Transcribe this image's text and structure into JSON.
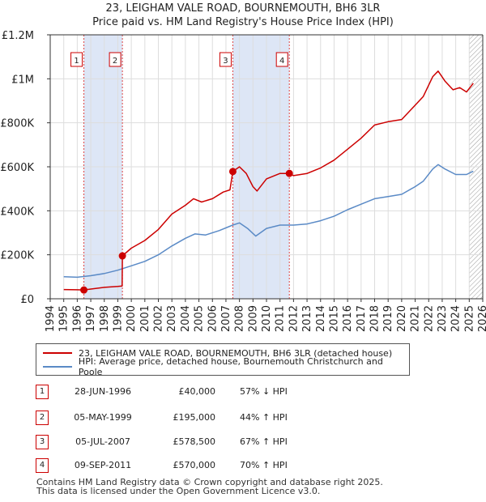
{
  "title": {
    "line1": "23, LEIGHAM VALE ROAD, BOURNEMOUTH, BH6 3LR",
    "line2": "Price paid vs. HM Land Registry's House Price Index (HPI)"
  },
  "chart_data": {
    "type": "line",
    "title": "23, LEIGHAM VALE ROAD, BOURNEMOUTH, BH6 3LR — Price paid vs. HM Land Registry's House Price Index (HPI)",
    "xlim": [
      1994,
      2026
    ],
    "ylim": [
      0,
      1200000
    ],
    "x_ticks": [
      "1994",
      "1995",
      "1996",
      "1997",
      "1998",
      "1999",
      "2000",
      "2001",
      "2002",
      "2003",
      "2004",
      "2005",
      "2006",
      "2007",
      "2008",
      "2009",
      "2010",
      "2011",
      "2012",
      "2013",
      "2014",
      "2015",
      "2016",
      "2017",
      "2018",
      "2019",
      "2020",
      "2021",
      "2022",
      "2023",
      "2024",
      "2025",
      "2026"
    ],
    "y_ticks": [
      {
        "value": 0,
        "label": "£0"
      },
      {
        "value": 200000,
        "label": "£200K"
      },
      {
        "value": 400000,
        "label": "£400K"
      },
      {
        "value": 600000,
        "label": "£600K"
      },
      {
        "value": 800000,
        "label": "£800K"
      },
      {
        "value": 1000000,
        "label": "£1M"
      },
      {
        "value": 1200000,
        "label": "£1.2M"
      }
    ],
    "shaded_periods": [
      [
        1996.49,
        1999.34
      ],
      [
        2007.51,
        2011.69
      ]
    ],
    "hatched_after": 2025.0,
    "series": [
      {
        "name": "23, LEIGHAM VALE ROAD, BOURNEMOUTH, BH6 3LR (detached house)",
        "color": "#cc0000",
        "points": [
          [
            1995.0,
            42000
          ],
          [
            1996.0,
            41000
          ],
          [
            1996.49,
            40000
          ],
          [
            1997.0,
            44000
          ],
          [
            1998.0,
            52000
          ],
          [
            1999.0,
            56000
          ],
          [
            1999.32,
            58000
          ],
          [
            1999.34,
            195000
          ],
          [
            2000.0,
            230000
          ],
          [
            2001.0,
            265000
          ],
          [
            2002.0,
            315000
          ],
          [
            2003.0,
            385000
          ],
          [
            2004.0,
            425000
          ],
          [
            2004.6,
            455000
          ],
          [
            2005.2,
            440000
          ],
          [
            2006.0,
            455000
          ],
          [
            2006.8,
            485000
          ],
          [
            2007.3,
            495000
          ],
          [
            2007.51,
            578500
          ],
          [
            2008.0,
            600000
          ],
          [
            2008.5,
            570000
          ],
          [
            2009.0,
            510000
          ],
          [
            2009.3,
            490000
          ],
          [
            2010.0,
            545000
          ],
          [
            2011.0,
            570000
          ],
          [
            2011.69,
            570000
          ],
          [
            2012.0,
            560000
          ],
          [
            2013.0,
            570000
          ],
          [
            2014.0,
            595000
          ],
          [
            2015.0,
            630000
          ],
          [
            2016.0,
            680000
          ],
          [
            2017.0,
            730000
          ],
          [
            2018.0,
            790000
          ],
          [
            2019.0,
            805000
          ],
          [
            2020.0,
            815000
          ],
          [
            2021.0,
            880000
          ],
          [
            2021.6,
            920000
          ],
          [
            2022.3,
            1010000
          ],
          [
            2022.7,
            1035000
          ],
          [
            2023.2,
            990000
          ],
          [
            2023.8,
            950000
          ],
          [
            2024.3,
            960000
          ],
          [
            2024.8,
            940000
          ],
          [
            2025.3,
            980000
          ]
        ]
      },
      {
        "name": "HPI: Average price, detached house, Bournemouth Christchurch and Poole",
        "color": "#5a8ac6",
        "points": [
          [
            1995.0,
            100000
          ],
          [
            1996.0,
            98000
          ],
          [
            1997.0,
            105000
          ],
          [
            1998.0,
            115000
          ],
          [
            1999.0,
            130000
          ],
          [
            2000.0,
            150000
          ],
          [
            2001.0,
            170000
          ],
          [
            2002.0,
            200000
          ],
          [
            2003.0,
            240000
          ],
          [
            2004.0,
            275000
          ],
          [
            2004.7,
            295000
          ],
          [
            2005.5,
            290000
          ],
          [
            2006.5,
            310000
          ],
          [
            2007.5,
            335000
          ],
          [
            2008.0,
            345000
          ],
          [
            2008.6,
            320000
          ],
          [
            2009.2,
            285000
          ],
          [
            2010.0,
            320000
          ],
          [
            2011.0,
            335000
          ],
          [
            2012.0,
            335000
          ],
          [
            2013.0,
            340000
          ],
          [
            2014.0,
            355000
          ],
          [
            2015.0,
            375000
          ],
          [
            2016.0,
            405000
          ],
          [
            2017.0,
            430000
          ],
          [
            2018.0,
            455000
          ],
          [
            2019.0,
            465000
          ],
          [
            2020.0,
            475000
          ],
          [
            2021.0,
            510000
          ],
          [
            2021.6,
            535000
          ],
          [
            2022.3,
            590000
          ],
          [
            2022.7,
            610000
          ],
          [
            2023.2,
            590000
          ],
          [
            2024.0,
            565000
          ],
          [
            2024.8,
            565000
          ],
          [
            2025.3,
            580000
          ]
        ]
      }
    ],
    "sale_markers": [
      {
        "label": "1",
        "x": 1996.49,
        "y": 40000
      },
      {
        "label": "2",
        "x": 1999.34,
        "y": 195000
      },
      {
        "label": "3",
        "x": 2007.51,
        "y": 578500
      },
      {
        "label": "4",
        "x": 2011.69,
        "y": 570000
      }
    ]
  },
  "legend": {
    "property_label": "23, LEIGHAM VALE ROAD, BOURNEMOUTH, BH6 3LR (detached house)",
    "hpi_label": "HPI: Average price, detached house, Bournemouth Christchurch and Poole",
    "property_color": "#cc0000",
    "hpi_color": "#5a8ac6"
  },
  "transactions": [
    {
      "num": "1",
      "date": "28-JUN-1996",
      "price": "£40,000",
      "hpi": "57% ↓ HPI"
    },
    {
      "num": "2",
      "date": "05-MAY-1999",
      "price": "£195,000",
      "hpi": "44% ↑ HPI"
    },
    {
      "num": "3",
      "date": "05-JUL-2007",
      "price": "£578,500",
      "hpi": "67% ↑ HPI"
    },
    {
      "num": "4",
      "date": "09-SEP-2011",
      "price": "£570,000",
      "hpi": "70% ↑ HPI"
    }
  ],
  "footer": {
    "line1": "Contains HM Land Registry data © Crown copyright and database right 2025.",
    "line2": "This data is licensed under the Open Government Licence v3.0."
  }
}
